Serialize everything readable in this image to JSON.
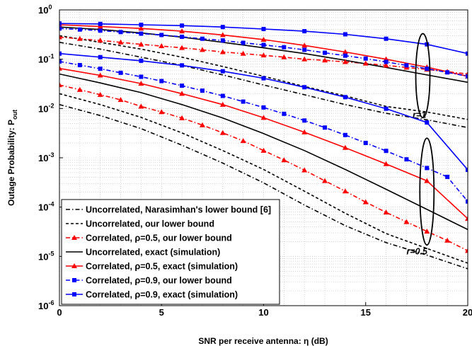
{
  "chart_data": {
    "type": "line",
    "xlabel": "SNR per receive antenna: η (dB)",
    "ylabel_main": "Outage Probability: P",
    "ylabel_sub": "out",
    "xlim": [
      0,
      20
    ],
    "ylim": [
      1e-06,
      1
    ],
    "yscale": "log",
    "grid": true,
    "legend_position": "bottom-left",
    "x_ticks": [
      0,
      5,
      10,
      15,
      20
    ],
    "y_tick_exponents": [
      0,
      -1,
      -2,
      -3,
      -4,
      -5,
      -6
    ],
    "y_tick_base": "10",
    "annotations": [
      {
        "text": "r=1",
        "x": 17.3,
        "y": 0.0065
      },
      {
        "text": "r=0.5",
        "x": 17.0,
        "y": 1.1e-05
      }
    ],
    "ellipses": [
      {
        "x": 17.8,
        "y_top": 0.33,
        "y_bottom": 0.0065
      },
      {
        "x": 18.0,
        "y_top": 0.0025,
        "y_bottom": 1.7e-05
      }
    ],
    "series": [
      {
        "name": "Uncorrelated, Narasimhan's lower bound [6]",
        "color": "#000000",
        "dash": "dashdot",
        "marker": "none",
        "x": [
          0,
          2,
          4,
          6,
          8,
          10,
          12,
          14,
          16,
          18,
          20
        ],
        "curves": [
          {
            "y": [
              0.22,
              0.16,
              0.11,
              0.075,
              0.048,
              0.03,
              0.019,
              0.012,
              0.008,
              0.0059,
              0.0041
            ]
          },
          {
            "y": [
              0.012,
              0.0072,
              0.0039,
              0.0018,
              0.00078,
              0.00031,
              0.00011,
              4.2e-05,
              1.9e-05,
              1.06e-05,
              5.6e-06
            ]
          }
        ]
      },
      {
        "name": "Uncorrelated, our lower bound",
        "color": "#000000",
        "dash": "dashed",
        "marker": "none",
        "x": [
          0,
          2,
          4,
          6,
          8,
          10,
          12,
          14,
          16,
          18,
          20
        ],
        "curves": [
          {
            "y": [
              0.3,
              0.22,
              0.16,
              0.11,
              0.071,
              0.045,
              0.028,
              0.018,
              0.011,
              0.0085,
              0.006
            ]
          },
          {
            "y": [
              0.02,
              0.012,
              0.0066,
              0.0032,
              0.0014,
              0.00058,
              0.00021,
              7.5e-05,
              2.9e-05,
              1.45e-05,
              7.3e-06
            ]
          }
        ]
      },
      {
        "name": "Correlated, ρ=0.5, our lower bound",
        "color": "#ff0000",
        "dash": "dashdot",
        "marker": "triangle",
        "x": [
          0,
          1,
          2,
          3,
          4,
          5,
          6,
          7,
          8,
          9,
          10,
          11,
          12,
          13,
          14,
          15,
          16,
          17,
          18,
          19,
          20
        ],
        "curves": [
          {
            "y": [
              0.28,
              0.26,
              0.24,
              0.22,
              0.2,
              0.185,
              0.17,
              0.155,
              0.14,
              0.13,
              0.12,
              0.11,
              0.1,
              0.095,
              0.088,
              0.082,
              0.075,
              0.068,
              0.062,
              0.056,
              0.05
            ]
          },
          {
            "y": [
              0.03,
              0.024,
              0.019,
              0.015,
              0.011,
              0.0085,
              0.0064,
              0.0046,
              0.0032,
              0.0022,
              0.0014,
              0.0009,
              0.00056,
              0.00034,
              0.00021,
              0.000126,
              7.8e-05,
              5e-05,
              3.2e-05,
              2.1e-05,
              1.3e-05
            ]
          }
        ]
      },
      {
        "name": "Uncorrelated, exact (simulation)",
        "color": "#000000",
        "dash": "solid",
        "marker": "none",
        "x": [
          0,
          2,
          4,
          6,
          8,
          10,
          12,
          14,
          16,
          18,
          20
        ],
        "curves": [
          {
            "y": [
              0.45,
              0.4,
              0.34,
              0.28,
              0.22,
              0.17,
              0.13,
              0.095,
              0.068,
              0.048,
              0.034
            ]
          },
          {
            "y": [
              0.05,
              0.033,
              0.021,
              0.012,
              0.0064,
              0.0031,
              0.0014,
              0.00058,
              0.00023,
              9e-05,
              3.5e-05
            ]
          }
        ]
      },
      {
        "name": "Correlated, ρ=0.5, exact (simulation)",
        "color": "#ff0000",
        "dash": "solid",
        "marker": "triangle",
        "x": [
          0,
          2,
          4,
          6,
          8,
          10,
          12,
          14,
          16,
          18,
          20
        ],
        "curves": [
          {
            "y": [
              0.5,
              0.46,
              0.42,
              0.37,
              0.31,
              0.25,
              0.19,
              0.14,
              0.1,
              0.069,
              0.045
            ]
          },
          {
            "y": [
              0.065,
              0.047,
              0.032,
              0.02,
              0.012,
              0.0065,
              0.0033,
              0.0016,
              0.00075,
              0.00034,
              5.8e-05
            ]
          }
        ]
      },
      {
        "name": "Correlated, ρ=0.9, our lower bound",
        "color": "#0000ff",
        "dash": "dashdot",
        "marker": "square",
        "x": [
          0,
          1,
          2,
          3,
          4,
          5,
          6,
          7,
          8,
          9,
          10,
          11,
          12,
          13,
          14,
          15,
          16,
          17,
          18,
          19,
          20
        ],
        "curves": [
          {
            "y": [
              0.42,
              0.4,
              0.38,
              0.355,
              0.33,
              0.31,
              0.285,
              0.26,
              0.24,
              0.215,
              0.195,
              0.175,
              0.155,
              0.135,
              0.118,
              0.103,
              0.088,
              0.075,
              0.064,
              0.054,
              0.045
            ]
          },
          {
            "y": [
              0.09,
              0.076,
              0.064,
              0.053,
              0.044,
              0.036,
              0.029,
              0.023,
              0.018,
              0.0138,
              0.0105,
              0.0078,
              0.0057,
              0.0041,
              0.0029,
              0.002,
              0.00138,
              0.00093,
              0.00062,
              0.00041,
              0.00013
            ]
          }
        ]
      },
      {
        "name": "Correlated, ρ=0.9, exact (simulation)",
        "color": "#0000ff",
        "dash": "solid",
        "marker": "square",
        "x": [
          0,
          2,
          4,
          6,
          8,
          10,
          12,
          14,
          16,
          18,
          20
        ],
        "curves": [
          {
            "y": [
              0.53,
              0.52,
              0.5,
              0.48,
              0.45,
              0.41,
              0.37,
              0.32,
              0.26,
              0.2,
              0.13
            ]
          },
          {
            "y": [
              0.13,
              0.11,
              0.093,
              0.075,
              0.057,
              0.041,
              0.027,
              0.017,
              0.0099,
              0.0052,
              0.00057
            ]
          }
        ]
      }
    ]
  }
}
